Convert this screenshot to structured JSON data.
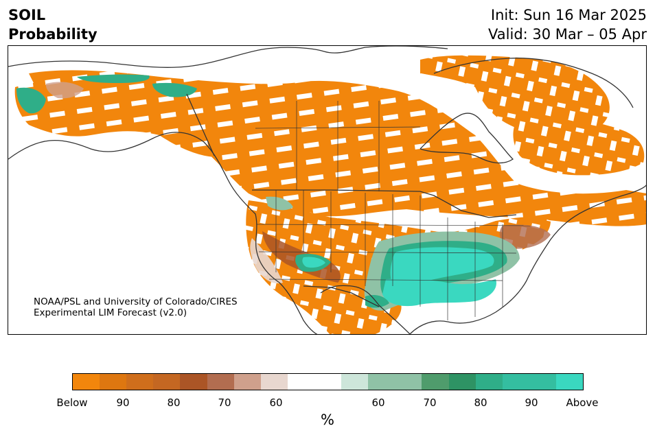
{
  "title": {
    "variable": "SOIL",
    "subtitle": "Probability",
    "init": "Init: Sun 16 Mar 2025",
    "valid": "Valid: 30 Mar – 05 Apr"
  },
  "credit": {
    "line1": "NOAA/PSL and University of Colorado/CIRES",
    "line2": "Experimental LIM Forecast (v2.0)"
  },
  "colorbar": {
    "unit_label": "%",
    "tick_labels": [
      "Below",
      "90",
      "80",
      "70",
      "60",
      "60",
      "70",
      "80",
      "90",
      "Above"
    ],
    "below_colors": [
      "#f2860c",
      "#de7710",
      "#cf6e1c",
      "#c46722",
      "#ab5526",
      "#b26d50",
      "#cfa08c",
      "#e8d7cf"
    ],
    "neutral_color": "#ffffff",
    "above_colors": [
      "#cde6da",
      "#8fc2a6",
      "#8fc2a6",
      "#4f9c6c",
      "#2e9364",
      "#2fae88",
      "#34bea0",
      "#34bea0",
      "#3ad8c0"
    ]
  },
  "map": {
    "colors": {
      "below": "#f2860c",
      "below_strong": "#ab5526",
      "below_light": "#cfa08c",
      "above_light": "#8fc2a6",
      "above": "#2fae88",
      "above_strong": "#3ad8c0",
      "coast": "#333333"
    }
  }
}
